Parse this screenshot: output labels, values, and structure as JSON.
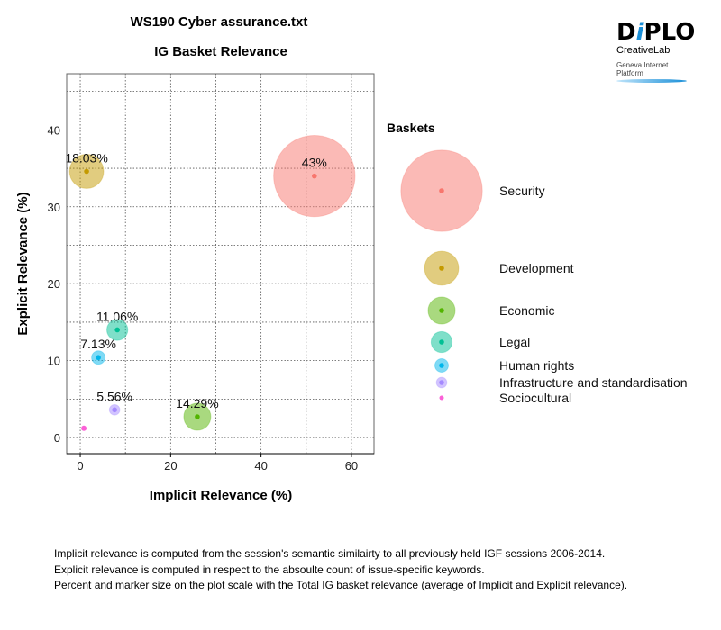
{
  "chart_data": {
    "type": "scatter",
    "title": "WS190 Cyber assurance.txt",
    "subtitle": "IG Basket Relevance",
    "xlabel": "Implicit Relevance (%)",
    "ylabel": "Explicit Relevance (%)",
    "xlim": [
      -3,
      65
    ],
    "ylim": [
      -2.1,
      47.3
    ],
    "xticks": [
      0,
      20,
      40,
      60
    ],
    "yticks": [
      0,
      10,
      20,
      30,
      40
    ],
    "grid": true,
    "legend_title": "Baskets",
    "legend_position": "right",
    "series": [
      {
        "name": "Security",
        "x": 51.8,
        "y": 34.0,
        "size": 43,
        "label": "43%",
        "color": "#F8766D"
      },
      {
        "name": "Development",
        "x": 1.4,
        "y": 34.6,
        "size": 18.03,
        "label": "18.03%",
        "color": "#C49A00"
      },
      {
        "name": "Economic",
        "x": 25.9,
        "y": 2.7,
        "size": 14.29,
        "label": "14.29%",
        "color": "#53B400"
      },
      {
        "name": "Legal",
        "x": 8.2,
        "y": 14.0,
        "size": 11.06,
        "label": "11.06%",
        "color": "#00C094"
      },
      {
        "name": "Human rights",
        "x": 4.0,
        "y": 10.4,
        "size": 7.13,
        "label": "7.13%",
        "color": "#00B6EB"
      },
      {
        "name": "Infrastructure and standardisation",
        "x": 7.6,
        "y": 3.6,
        "size": 5.56,
        "label": "5.56%",
        "color": "#A58AFF"
      },
      {
        "name": "Sociocultural",
        "x": 0.8,
        "y": 1.2,
        "size": 0.93,
        "label": "",
        "color": "#FB61D7"
      }
    ]
  },
  "logo": {
    "brand": "DiPLO",
    "sub": "CreativeLab",
    "tagline": "Geneva Internet Platform"
  },
  "footer": {
    "lines": [
      "Implicit relevance is computed from the session's semantic similairty to all previously held IGF sessions 2006-2014.",
      "Explicit relevance is computed in respect to the absoulte count of issue-specific keywords.",
      "Percent and marker size on the plot scale with the Total IG basket relevance (average of Implicit and Explicit relevance)."
    ]
  }
}
